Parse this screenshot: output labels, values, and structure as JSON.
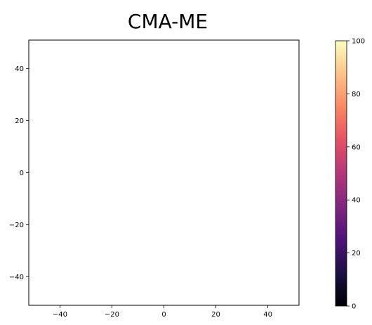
{
  "chart_data": {
    "type": "heatmap",
    "title": "CMA-ME",
    "xlabel": "",
    "ylabel": "",
    "xlim": [
      -52,
      52
    ],
    "ylim": [
      -51,
      51
    ],
    "x_ticks": [
      -40,
      -20,
      0,
      20,
      40
    ],
    "y_ticks": [
      -40,
      -20,
      0,
      20,
      40
    ],
    "x_tick_labels": [
      "−40",
      "−20",
      "0",
      "20",
      "40"
    ],
    "y_tick_labels": [
      "−40",
      "−20",
      "0",
      "20",
      "40"
    ],
    "values": [],
    "grid": false,
    "colorbar": {
      "colormap": "magma",
      "range": [
        0,
        100
      ],
      "ticks": [
        0,
        20,
        40,
        60,
        80,
        100
      ],
      "tick_labels": [
        "0",
        "20",
        "40",
        "60",
        "80",
        "100"
      ],
      "colors": [
        "#000004",
        "#1c1044",
        "#4f127b",
        "#812581",
        "#b5367a",
        "#e55064",
        "#fb8761",
        "#fec287",
        "#fcfdbf"
      ]
    }
  }
}
